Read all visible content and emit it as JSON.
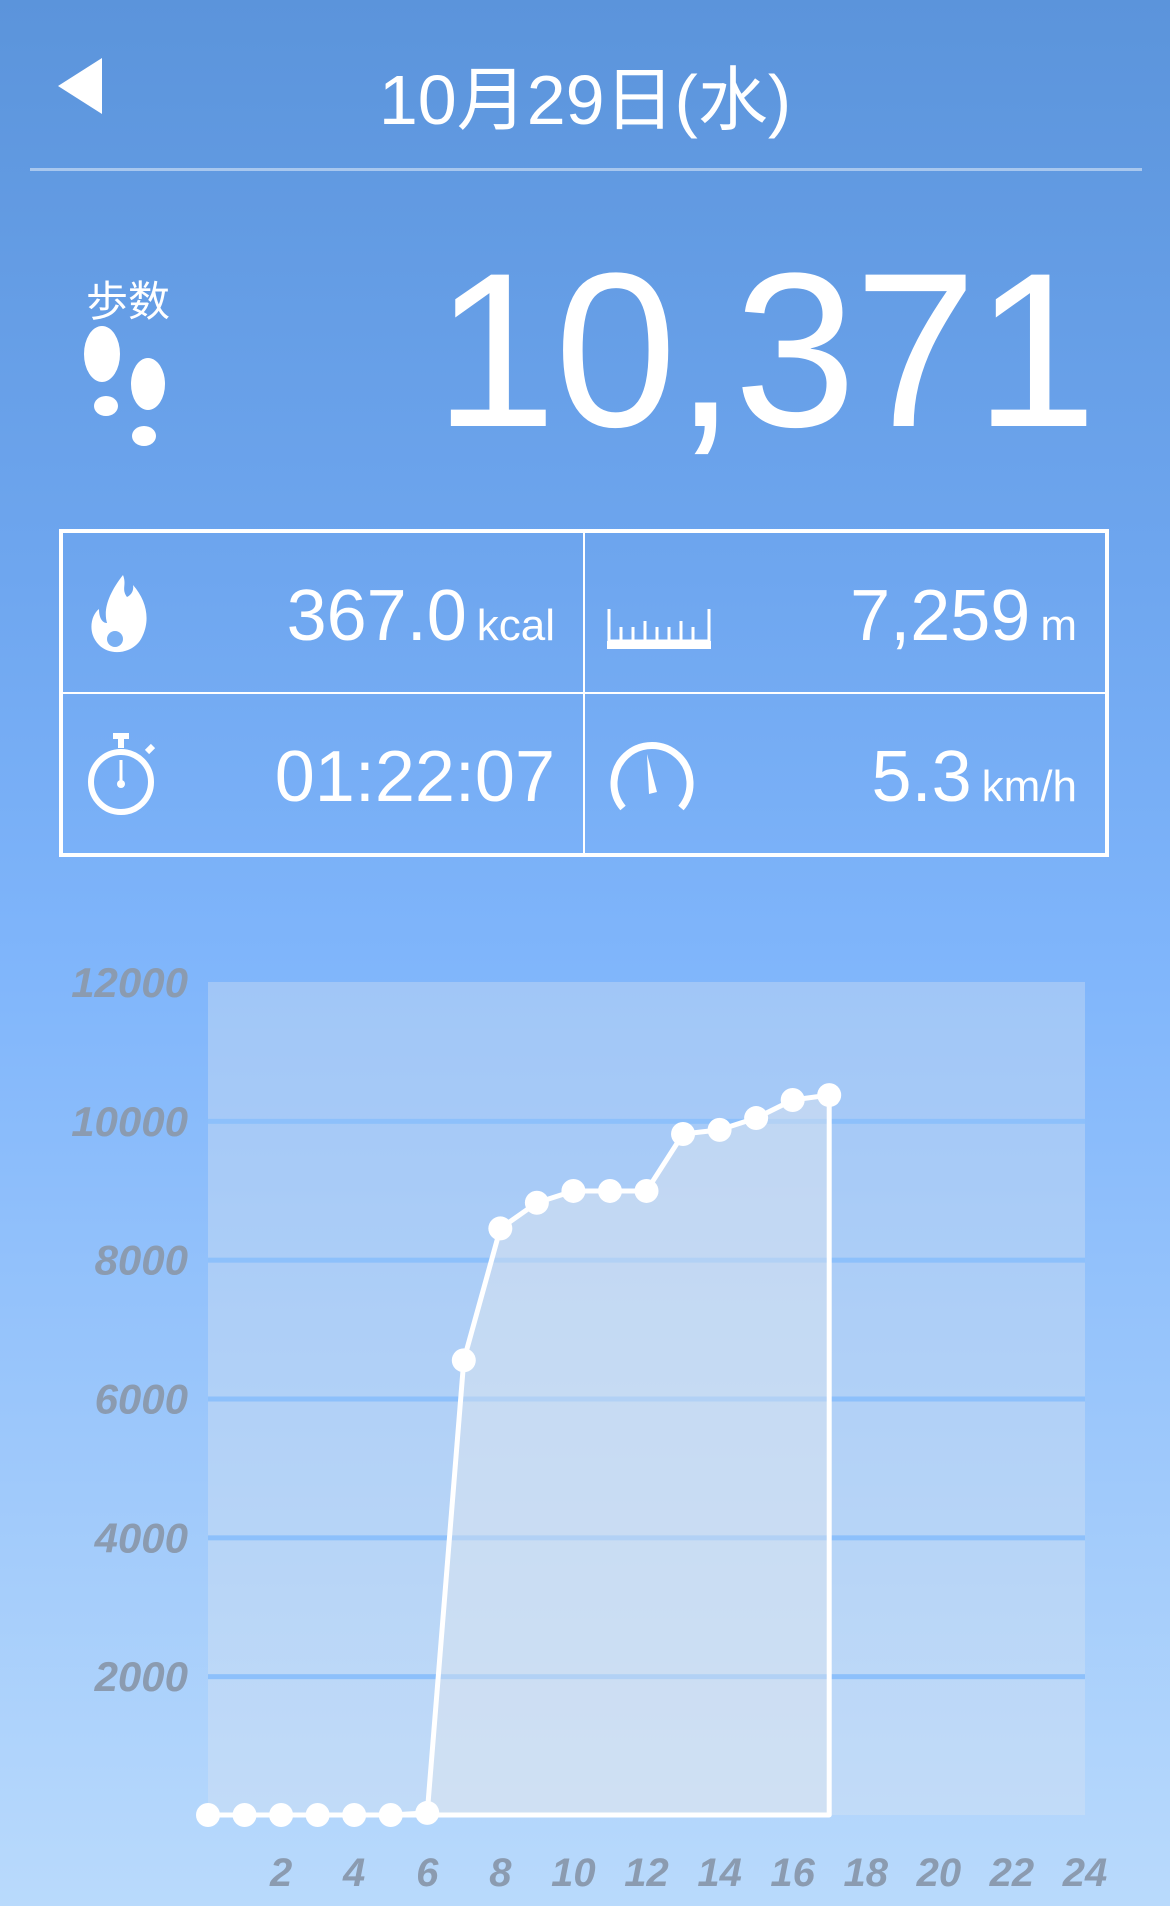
{
  "header": {
    "title": "10月29日(水)",
    "back_icon": "back-triangle-icon"
  },
  "steps": {
    "label": "歩数",
    "value": "10,371",
    "icon": "footprints-icon"
  },
  "stats": [
    {
      "icon": "flame-icon",
      "value": "367.0",
      "unit": "kcal"
    },
    {
      "icon": "ruler-icon",
      "value": "7,259",
      "unit": "m"
    },
    {
      "icon": "stopwatch-icon",
      "value": "01:22:07",
      "unit": ""
    },
    {
      "icon": "speedometer-icon",
      "value": "5.3",
      "unit": "km/h"
    }
  ],
  "colors": {
    "background_top": "#5b94db",
    "background_bottom": "#b9dafc",
    "line": "#ffffff",
    "axis_label": "#8b9bb0"
  },
  "chart_data": {
    "type": "line",
    "title": "",
    "xlabel": "",
    "ylabel": "",
    "x": [
      0,
      1,
      2,
      3,
      4,
      5,
      6,
      7,
      8,
      9,
      10,
      11,
      12,
      13,
      14,
      15,
      16,
      17
    ],
    "values": [
      0,
      0,
      0,
      0,
      0,
      0,
      30,
      6550,
      8450,
      8820,
      8990,
      8990,
      8990,
      9810,
      9870,
      10040,
      10300,
      10371
    ],
    "xlim": [
      0,
      24
    ],
    "ylim": [
      0,
      12000
    ],
    "x_ticks": [
      "2",
      "4",
      "6",
      "8",
      "10",
      "12",
      "14",
      "16",
      "18",
      "20",
      "22",
      "24"
    ],
    "y_ticks": [
      "2000",
      "4000",
      "6000",
      "8000",
      "10000",
      "12000"
    ],
    "grid": true,
    "filled": true
  }
}
